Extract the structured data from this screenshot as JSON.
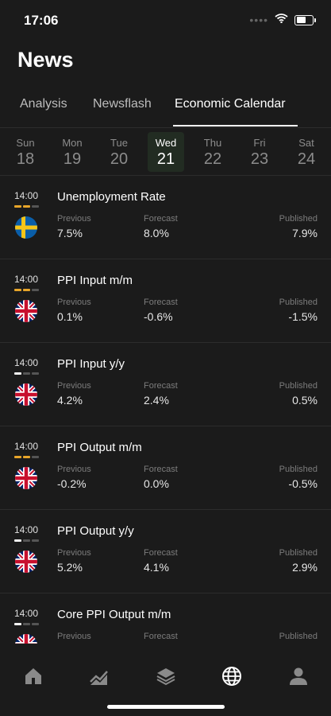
{
  "status": {
    "time": "17:06"
  },
  "page": {
    "title": "News"
  },
  "tabs": [
    {
      "label": "Analysis"
    },
    {
      "label": "Newsflash"
    },
    {
      "label": "Economic Calendar"
    }
  ],
  "week": [
    {
      "name": "Sun",
      "date": "18"
    },
    {
      "name": "Mon",
      "date": "19"
    },
    {
      "name": "Tue",
      "date": "20"
    },
    {
      "name": "Wed",
      "date": "21"
    },
    {
      "name": "Thu",
      "date": "22"
    },
    {
      "name": "Fri",
      "date": "23"
    },
    {
      "name": "Sat",
      "date": "24"
    }
  ],
  "selected_day": "Wed 21",
  "labels": {
    "previous": "Previous",
    "forecast": "Forecast",
    "published": "Published"
  },
  "events": [
    {
      "time": "14:00",
      "name": "Unemployment Rate",
      "country": "Sweden",
      "importance": "medium",
      "previous": "7.5%",
      "forecast": "8.0%",
      "published": "7.9%"
    },
    {
      "time": "14:00",
      "name": "PPI Input m/m",
      "country": "United Kingdom",
      "importance": "medium",
      "previous": "0.1%",
      "forecast": "-0.6%",
      "published": "-1.5%"
    },
    {
      "time": "14:00",
      "name": "PPI Input y/y",
      "country": "United Kingdom",
      "importance": "low",
      "previous": "4.2%",
      "forecast": "2.4%",
      "published": "0.5%"
    },
    {
      "time": "14:00",
      "name": "PPI Output m/m",
      "country": "United Kingdom",
      "importance": "medium",
      "previous": "-0.2%",
      "forecast": "0.0%",
      "published": "-0.5%"
    },
    {
      "time": "14:00",
      "name": "PPI Output y/y",
      "country": "United Kingdom",
      "importance": "low",
      "previous": "5.2%",
      "forecast": "4.1%",
      "published": "2.9%"
    },
    {
      "time": "14:00",
      "name": "Core PPI Output m/m",
      "country": "United Kingdom",
      "importance": "low",
      "previous": "",
      "forecast": "",
      "published": ""
    }
  ],
  "nav": [
    {
      "icon": "home-icon"
    },
    {
      "icon": "chart-trend-icon"
    },
    {
      "icon": "layers-icon"
    },
    {
      "icon": "globe-icon"
    },
    {
      "icon": "user-icon"
    }
  ],
  "colors": {
    "background": "#1b1b1b",
    "importance_medium": "#e7a52a",
    "importance_low": "#f2f2f2",
    "selected_day": "#222c22"
  }
}
